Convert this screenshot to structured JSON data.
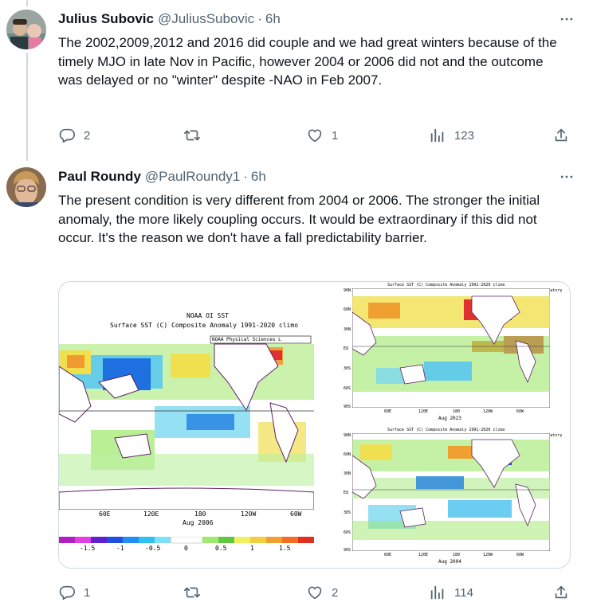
{
  "tweets": [
    {
      "name": "Julius Subovic",
      "handle": "@JuliusSubovic",
      "time": "6h",
      "text": "The 2002,2009,2012 and 2016 did couple and we had great winters because of the timely MJO in late Nov in Pacific, however 2004 or 2006 did not and the outcome was delayed or no \"winter\" despite -NAO in Feb 2007.",
      "replies": "2",
      "retweets": "",
      "likes": "1",
      "views": "123"
    },
    {
      "name": "Paul Roundy",
      "handle": "@PaulRoundy1",
      "time": "6h",
      "text": "The present condition is very different from 2004 or 2006. The stronger the initial anomaly, the more likely coupling occurs. It would be extraordinary if this did not occur. It's the reason we don't have a fall predictability barrier.",
      "replies": "1",
      "retweets": "",
      "likes": "2",
      "views": "114"
    }
  ],
  "media": {
    "main_map": {
      "title_line1": "NOAA OI SST",
      "title_line2": "Surface SST (C) Composite Anomaly 1991-2020 climo",
      "lab_label": "NOAA Physical Sciences L",
      "x_ticks": [
        "60E",
        "120E",
        "180",
        "120W",
        "60W"
      ],
      "period": "Aug 2006",
      "colorbar_ticks": [
        "-1.5",
        "-1",
        "-0.5",
        "0",
        "0.5",
        "1",
        "1.5"
      ]
    },
    "top_map": {
      "title": "Surface SST (C) Composite Anomaly 1991-2020 climo",
      "lab_label": "NOAA Physical Sciences Laboratory",
      "y_ticks": [
        "90N",
        "60N",
        "30N",
        "EQ",
        "30S",
        "60S",
        "90S"
      ],
      "x_ticks": [
        "60E",
        "120E",
        "180",
        "120W",
        "60W"
      ],
      "period": "Aug 2023"
    },
    "bottom_map": {
      "title": "Surface SST (C) Composite Anomaly 1991-2020 climo",
      "lab_label": "NOAA Physical Sciences Laboratory",
      "y_ticks": [
        "90N",
        "60N",
        "30N",
        "EQ",
        "30S",
        "60S",
        "90S"
      ],
      "x_ticks": [
        "60E",
        "120E",
        "180",
        "120W",
        "60W"
      ],
      "period": "Aug 2004"
    }
  },
  "colors": {
    "text": "#0f1419",
    "secondary": "#536471",
    "thread_line": "#cfd9de",
    "border": "#cfd9de"
  },
  "icons": [
    "more-icon",
    "reply-icon",
    "retweet-icon",
    "like-icon",
    "views-icon",
    "share-icon"
  ]
}
